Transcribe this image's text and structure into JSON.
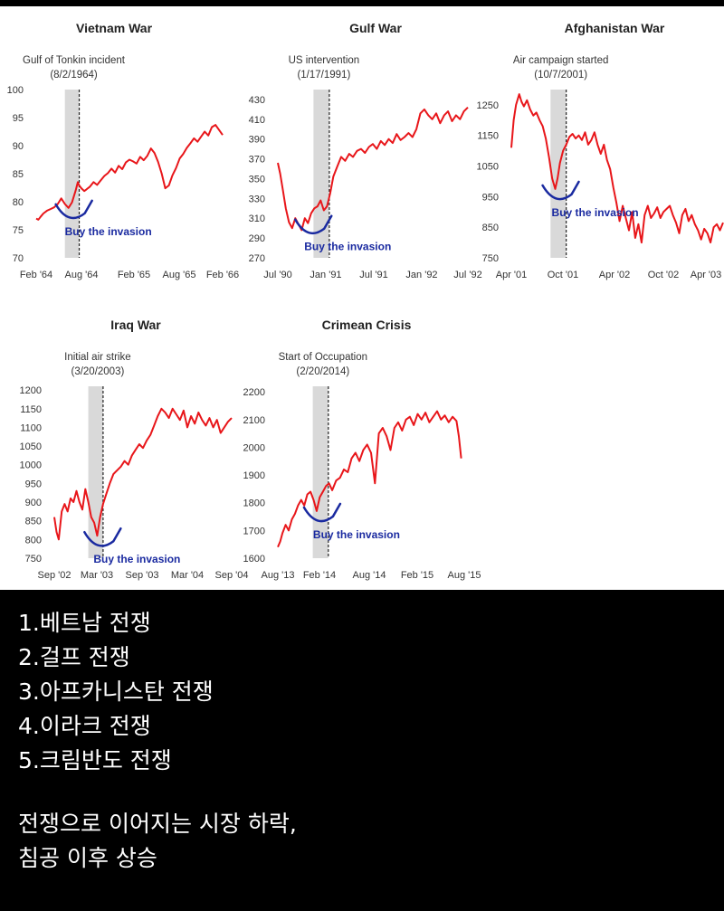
{
  "chart_data": [
    {
      "type": "line",
      "title": "Vietnam War",
      "event_label": "Gulf of Tonkin incident",
      "event_date": "(8/2/1964)",
      "annotation": "Buy the invasion",
      "x_ticks": [
        "Feb '64",
        "Aug '64",
        "Feb '65",
        "Aug '65",
        "Feb '66"
      ],
      "y_ticks": [
        70,
        75,
        80,
        85,
        90,
        95,
        100
      ],
      "ylim": [
        70,
        100
      ],
      "series": [
        {
          "x": [
            0.0,
            0.3,
            0.6,
            1.0,
            1.5,
            2.0,
            2.5,
            3.0,
            3.5,
            4.0,
            4.5,
            5.0,
            5.5,
            5.8,
            6.0,
            6.3,
            6.7,
            7.0,
            7.5,
            8.0,
            8.5,
            9.0,
            9.5,
            10.0,
            10.5,
            11.0,
            11.5,
            12.0,
            12.5,
            13.0,
            13.5,
            14.0,
            14.5,
            15.0,
            15.5,
            16.0,
            16.5,
            17.0,
            17.5,
            18.0,
            18.5,
            19.0,
            19.5,
            20.0,
            20.5,
            21.0,
            21.5,
            22.0,
            22.5,
            23.0,
            23.5,
            24.0,
            24.5,
            25.0,
            25.5,
            26.0
          ],
          "values": [
            77.0,
            76.8,
            77.3,
            77.9,
            78.4,
            78.7,
            79.0,
            79.6,
            80.6,
            79.6,
            78.9,
            79.9,
            82.0,
            83.5,
            82.9,
            82.4,
            81.9,
            82.2,
            82.7,
            83.5,
            83.0,
            83.8,
            84.6,
            85.1,
            85.9,
            85.2,
            86.4,
            85.8,
            87.0,
            87.5,
            87.2,
            86.8,
            88.0,
            87.4,
            88.2,
            89.5,
            88.7,
            87.1,
            85.0,
            82.4,
            82.9,
            84.7,
            86.0,
            87.7,
            88.5,
            89.6,
            90.4,
            91.3,
            90.7,
            91.6,
            92.5,
            91.8,
            93.3,
            93.7,
            92.8,
            91.9
          ]
        }
      ],
      "event_x": 6.0,
      "shade": [
        4.0,
        6.0
      ]
    },
    {
      "type": "line",
      "title": "Gulf War",
      "event_label": "US intervention",
      "event_date": "(1/17/1991)",
      "annotation": "Buy the invasion",
      "x_ticks": [
        "Jul '90",
        "Jan '91",
        "Jul '91",
        "Jan '92",
        "Jul '92"
      ],
      "y_ticks": [
        270,
        290,
        310,
        330,
        350,
        370,
        390,
        410,
        430
      ],
      "ylim": [
        270,
        440
      ],
      "series": [
        {
          "x": [
            0.0,
            0.3,
            0.6,
            1.0,
            1.4,
            1.8,
            2.2,
            2.6,
            3.0,
            3.4,
            3.8,
            4.2,
            4.6,
            5.0,
            5.4,
            5.8,
            6.2,
            6.6,
            7.0,
            7.5,
            8.0,
            8.5,
            9.0,
            9.5,
            10.0,
            10.5,
            11.0,
            11.5,
            12.0,
            12.5,
            13.0,
            13.5,
            14.0,
            14.5,
            15.0,
            15.5,
            16.0,
            16.5,
            17.0,
            17.5,
            18.0,
            18.5,
            19.0,
            19.5,
            20.0,
            20.5,
            21.0,
            21.5,
            22.0,
            22.5,
            23.0,
            23.5,
            24.0
          ],
          "values": [
            366.0,
            355.0,
            340.0,
            320.0,
            306.0,
            300.0,
            310.0,
            304.0,
            298.0,
            310.0,
            305.0,
            315.0,
            320.0,
            322.0,
            328.0,
            318.0,
            322.0,
            335.0,
            352.0,
            362.0,
            372.0,
            368.0,
            375.0,
            372.0,
            378.0,
            380.0,
            376.0,
            382.0,
            385.0,
            380.0,
            388.0,
            384.0,
            390.0,
            386.0,
            395.0,
            389.0,
            392.0,
            396.0,
            392.0,
            400.0,
            416.0,
            420.0,
            414.0,
            410.0,
            416.0,
            406.0,
            414.0,
            418.0,
            408.0,
            414.0,
            410.0,
            418.0,
            422.0
          ]
        }
      ],
      "event_x": 6.5,
      "shade": [
        4.5,
        6.5
      ]
    },
    {
      "type": "line",
      "title": "Afghanistan War",
      "event_label": "Air campaign started",
      "event_date": "(10/7/2001)",
      "annotation": "Buy the invasion",
      "x_ticks": [
        "Apr '01",
        "Oct '01",
        "Apr '02",
        "Oct '02",
        "Apr '03"
      ],
      "y_ticks": [
        750,
        850,
        950,
        1050,
        1150,
        1250
      ],
      "ylim": [
        750,
        1300
      ],
      "series": [
        {
          "x": [
            0.0,
            0.3,
            0.6,
            1.0,
            1.3,
            1.6,
            2.0,
            2.4,
            2.8,
            3.2,
            3.6,
            4.0,
            4.4,
            4.8,
            5.2,
            5.6,
            5.9,
            6.2,
            6.6,
            7.0,
            7.4,
            7.8,
            8.2,
            8.6,
            9.0,
            9.4,
            9.8,
            10.2,
            10.6,
            11.0,
            11.4,
            11.8,
            12.2,
            12.6,
            13.0,
            13.4,
            13.8,
            14.2,
            14.6,
            15.0,
            15.4,
            15.8,
            16.2,
            16.6,
            17.0,
            17.4,
            17.8,
            18.2,
            18.6,
            19.0,
            19.4,
            19.8,
            20.2,
            20.6,
            21.0,
            21.4,
            21.8,
            22.2,
            22.6,
            23.0,
            23.4,
            23.8,
            24.2,
            24.6,
            25.0,
            25.4,
            25.8,
            26.2,
            26.6,
            27.0
          ],
          "values": [
            1110.0,
            1200.0,
            1250.0,
            1285.0,
            1260.0,
            1245.0,
            1265.0,
            1235.0,
            1215.0,
            1225.0,
            1200.0,
            1180.0,
            1140.0,
            1080.0,
            1010.0,
            975.0,
            1010.0,
            1060.0,
            1100.0,
            1120.0,
            1145.0,
            1155.0,
            1140.0,
            1150.0,
            1135.0,
            1160.0,
            1120.0,
            1135.0,
            1160.0,
            1120.0,
            1090.0,
            1120.0,
            1070.0,
            1040.0,
            980.0,
            930.0,
            870.0,
            920.0,
            880.0,
            840.0,
            900.0,
            815.0,
            860.0,
            800.0,
            890.0,
            920.0,
            880.0,
            895.0,
            915.0,
            880.0,
            900.0,
            910.0,
            920.0,
            890.0,
            865.0,
            830.0,
            890.0,
            910.0,
            870.0,
            890.0,
            860.0,
            840.0,
            810.0,
            845.0,
            830.0,
            800.0,
            850.0,
            860.0,
            840.0,
            865.0
          ]
        }
      ],
      "event_x": 7.0,
      "shade": [
        5.0,
        7.0
      ]
    },
    {
      "type": "line",
      "title": "Iraq War",
      "event_label": "Initial air strike",
      "event_date": "(3/20/2003)",
      "annotation": "Buy the invasion",
      "x_ticks": [
        "Sep '02",
        "Mar '03",
        "Sep '03",
        "Mar '04",
        "Sep '04"
      ],
      "y_ticks": [
        750,
        800,
        850,
        900,
        950,
        1000,
        1050,
        1100,
        1150,
        1200
      ],
      "ylim": [
        750,
        1210
      ],
      "series": [
        {
          "x": [
            0.0,
            0.3,
            0.6,
            1.0,
            1.4,
            1.8,
            2.2,
            2.6,
            3.0,
            3.4,
            3.8,
            4.2,
            4.6,
            5.0,
            5.4,
            5.8,
            6.2,
            6.6,
            7.0,
            7.5,
            8.0,
            8.5,
            9.0,
            9.5,
            10.0,
            10.5,
            11.0,
            11.5,
            12.0,
            12.5,
            13.0,
            13.5,
            14.0,
            14.5,
            15.0,
            15.5,
            16.0,
            16.5,
            17.0,
            17.5,
            18.0,
            18.5,
            19.0,
            19.5,
            20.0,
            20.5,
            21.0,
            21.5,
            22.0,
            22.5,
            23.0,
            23.5,
            24.0
          ],
          "values": [
            860.0,
            820.0,
            800.0,
            875.0,
            895.0,
            875.0,
            910.0,
            900.0,
            930.0,
            900.0,
            880.0,
            935.0,
            900.0,
            860.0,
            845.0,
            810.0,
            860.0,
            895.0,
            920.0,
            950.0,
            975.0,
            985.0,
            995.0,
            1010.0,
            1000.0,
            1025.0,
            1040.0,
            1055.0,
            1045.0,
            1065.0,
            1080.0,
            1105.0,
            1130.0,
            1150.0,
            1140.0,
            1125.0,
            1150.0,
            1135.0,
            1120.0,
            1145.0,
            1100.0,
            1130.0,
            1110.0,
            1140.0,
            1120.0,
            1105.0,
            1125.0,
            1100.0,
            1120.0,
            1085.0,
            1100.0,
            1115.0,
            1125.0
          ]
        }
      ],
      "event_x": 6.6,
      "shade": [
        4.6,
        6.6
      ]
    },
    {
      "type": "line",
      "title": "Crimean Crisis",
      "event_label": "Start of Occupation",
      "event_date": "(2/20/2014)",
      "annotation": "Buy the invasion",
      "x_ticks": [
        "Aug '13",
        "Feb '14",
        "Aug '14",
        "Feb '15",
        "Aug '15"
      ],
      "y_ticks": [
        1600,
        1700,
        1800,
        1900,
        2000,
        2100,
        2200
      ],
      "ylim": [
        1600,
        2220
      ],
      "series": [
        {
          "x": [
            0.0,
            0.3,
            0.6,
            1.0,
            1.4,
            1.8,
            2.2,
            2.6,
            3.0,
            3.4,
            3.8,
            4.2,
            4.6,
            5.0,
            5.4,
            5.8,
            6.2,
            6.6,
            7.0,
            7.5,
            8.0,
            8.5,
            9.0,
            9.5,
            10.0,
            10.5,
            11.0,
            11.5,
            12.0,
            12.5,
            13.0,
            13.5,
            14.0,
            14.5,
            15.0,
            15.5,
            16.0,
            16.5,
            17.0,
            17.5,
            18.0,
            18.5,
            19.0,
            19.5,
            20.0,
            20.5,
            21.0,
            21.5,
            22.0,
            22.5,
            23.0,
            23.3,
            23.6
          ],
          "values": [
            1640.0,
            1660.0,
            1690.0,
            1720.0,
            1700.0,
            1740.0,
            1760.0,
            1790.0,
            1810.0,
            1790.0,
            1830.0,
            1840.0,
            1810.0,
            1770.0,
            1820.0,
            1840.0,
            1860.0,
            1870.0,
            1845.0,
            1880.0,
            1890.0,
            1920.0,
            1910.0,
            1960.0,
            1980.0,
            1950.0,
            1990.0,
            2010.0,
            1980.0,
            1870.0,
            2050.0,
            2070.0,
            2040.0,
            1990.0,
            2070.0,
            2090.0,
            2060.0,
            2100.0,
            2110.0,
            2080.0,
            2120.0,
            2100.0,
            2125.0,
            2090.0,
            2110.0,
            2130.0,
            2100.0,
            2115.0,
            2090.0,
            2110.0,
            2095.0,
            2040.0,
            1960.0
          ]
        }
      ],
      "event_x": 6.5,
      "shade": [
        4.5,
        6.5
      ]
    }
  ],
  "colors": {
    "line": "#e8161a",
    "annotation": "#1a2aa0",
    "shade": "#d9d9d9",
    "caption_bg": "#000000",
    "caption_text": "#ffffff"
  },
  "caption": {
    "lines": [
      "1.베트남 전쟁",
      "2.걸프 전쟁",
      "3.아프카니스탄 전쟁",
      "4.이라크 전쟁",
      "5.크림반도 전쟁"
    ],
    "summary_lines": [
      "전쟁으로 이어지는 시장 하락,",
      "침공 이후 상승"
    ]
  }
}
